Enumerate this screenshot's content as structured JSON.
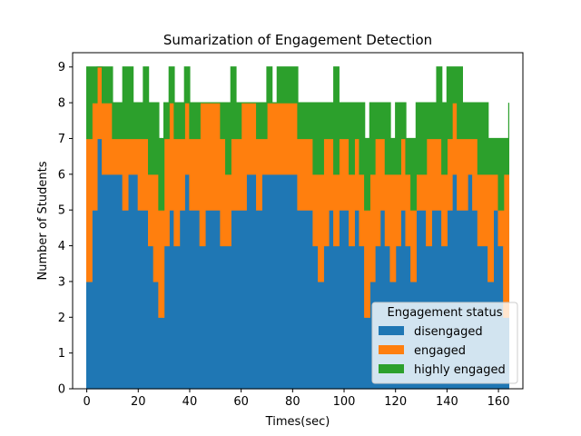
{
  "chart_data": {
    "type": "area",
    "title": "Sumarization of Engagement Detection",
    "xlabel": "Times(sec)",
    "ylabel": "Number of Students",
    "xlim": [
      -5.5,
      169.5
    ],
    "ylim": [
      0,
      9.4
    ],
    "xticks": [
      0,
      20,
      40,
      60,
      80,
      100,
      120,
      140,
      160
    ],
    "yticks": [
      0,
      1,
      2,
      3,
      4,
      5,
      6,
      7,
      8,
      9
    ],
    "grid": false,
    "stacked": true,
    "legend": {
      "title": "Engagement status",
      "placement": "lower-right"
    },
    "series": [
      {
        "name": "disengaged",
        "color": "#1f77b4"
      },
      {
        "name": "engaged",
        "color": "#ff7f0e"
      },
      {
        "name": "highly engaged",
        "color": "#2ca02c"
      }
    ],
    "x": [
      0,
      2,
      4,
      6,
      8,
      10,
      12,
      14,
      16,
      18,
      20,
      22,
      24,
      26,
      28,
      30,
      32,
      34,
      36,
      38,
      40,
      42,
      44,
      46,
      48,
      50,
      52,
      54,
      56,
      58,
      60,
      62,
      64,
      66,
      68,
      70,
      72,
      74,
      76,
      78,
      80,
      82,
      84,
      86,
      88,
      90,
      92,
      94,
      96,
      98,
      100,
      102,
      104,
      106,
      108,
      110,
      112,
      114,
      116,
      118,
      120,
      122,
      124,
      126,
      128,
      130,
      132,
      134,
      136,
      138,
      140,
      142,
      144,
      146,
      148,
      150,
      152,
      154,
      156,
      158,
      160,
      162,
      164
    ],
    "stack_top": {
      "disengaged": [
        3,
        5,
        7,
        6,
        6,
        6,
        6,
        5,
        6,
        6,
        5,
        5,
        4,
        3,
        2,
        4,
        5,
        4,
        5,
        6,
        5,
        5,
        4,
        5,
        5,
        5,
        4,
        4,
        5,
        5,
        5,
        6,
        6,
        5,
        6,
        6,
        6,
        6,
        6,
        6,
        6,
        5,
        5,
        5,
        4,
        3,
        4,
        5,
        4,
        5,
        5,
        4,
        5,
        4,
        2,
        3,
        4,
        5,
        4,
        3,
        4,
        5,
        4,
        3,
        5,
        5,
        4,
        5,
        5,
        4,
        5,
        6,
        5,
        5,
        6,
        5,
        4,
        4,
        3,
        5,
        4,
        2,
        5
      ],
      "engaged": [
        7,
        8,
        9,
        8,
        8,
        7,
        7,
        7,
        7,
        7,
        7,
        7,
        6,
        6,
        5,
        7,
        8,
        7,
        7,
        8,
        7,
        7,
        8,
        8,
        8,
        8,
        7,
        6,
        7,
        7,
        8,
        8,
        8,
        7,
        7,
        8,
        8,
        8,
        8,
        8,
        8,
        7,
        7,
        7,
        6,
        6,
        7,
        7,
        6,
        7,
        7,
        6,
        7,
        6,
        5,
        6,
        7,
        7,
        6,
        6,
        6,
        7,
        6,
        5,
        6,
        6,
        7,
        7,
        7,
        6,
        7,
        8,
        7,
        7,
        7,
        7,
        6,
        6,
        6,
        6,
        5,
        6,
        7
      ],
      "highly engaged": [
        9,
        9,
        9,
        9,
        9,
        8,
        8,
        9,
        9,
        8,
        8,
        9,
        8,
        8,
        7,
        8,
        9,
        8,
        8,
        9,
        8,
        8,
        8,
        8,
        8,
        8,
        8,
        8,
        9,
        8,
        8,
        8,
        8,
        8,
        8,
        9,
        8,
        9,
        9,
        9,
        9,
        8,
        8,
        8,
        8,
        8,
        8,
        8,
        9,
        8,
        8,
        8,
        8,
        8,
        7,
        8,
        8,
        8,
        8,
        7,
        8,
        8,
        7,
        7,
        8,
        8,
        8,
        8,
        9,
        8,
        9,
        9,
        9,
        8,
        8,
        8,
        8,
        8,
        7,
        7,
        7,
        7,
        8
      ]
    }
  }
}
